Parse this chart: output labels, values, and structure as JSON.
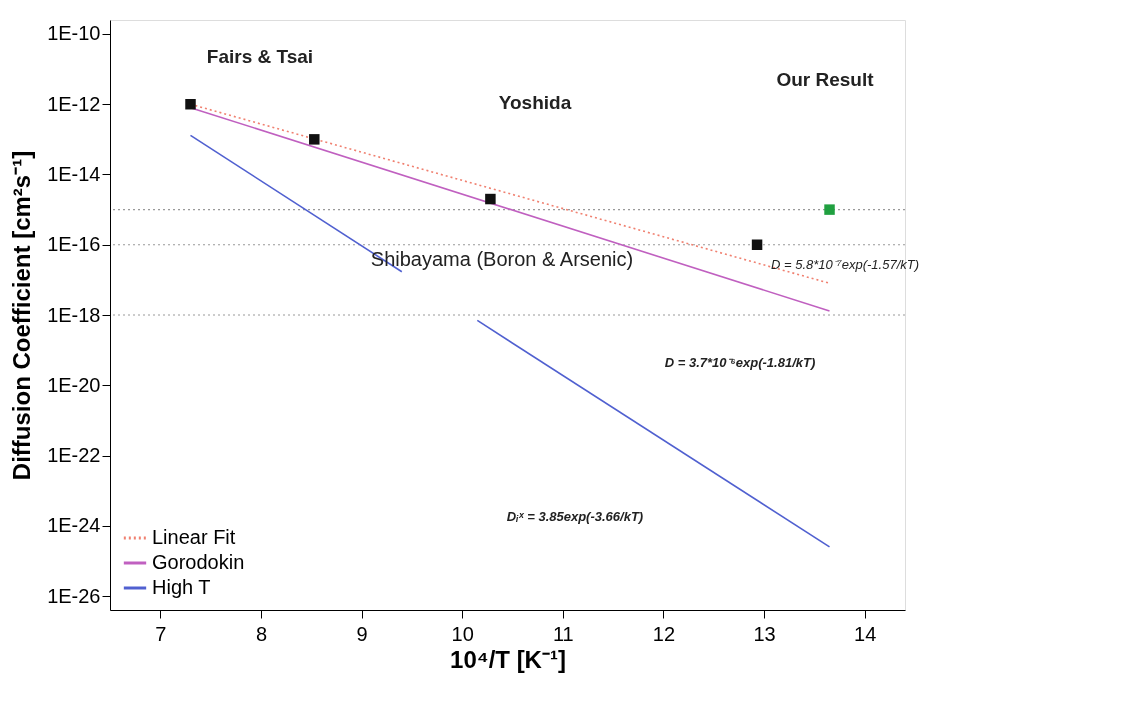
{
  "chart_data": {
    "type": "line",
    "xlabel": "10⁴/T [K⁻¹]",
    "ylabel": "Diffusion Coefficient [cm²s⁻¹]",
    "log": "y",
    "xlim": [
      6.5,
      14.4
    ],
    "ylim": [
      4e-27,
      2.5e-10
    ],
    "xticks": [
      7,
      8,
      9,
      10,
      11,
      12,
      13,
      14
    ],
    "yticks": [
      {
        "value": 1e-10,
        "label": "1E-10"
      },
      {
        "value": 1e-12,
        "label": "1E-12"
      },
      {
        "value": 1e-14,
        "label": "1E-14"
      },
      {
        "value": 1e-16,
        "label": "1E-16"
      },
      {
        "value": 1e-18,
        "label": "1E-18"
      },
      {
        "value": 1e-20,
        "label": "1E-20"
      },
      {
        "value": 1e-22,
        "label": "1E-22"
      },
      {
        "value": 1e-24,
        "label": "1E-24"
      },
      {
        "value": 1e-26,
        "label": "1E-26"
      }
    ],
    "grid": false,
    "legend": "bottom left",
    "series": [
      {
        "name": "Linear Fit",
        "color": "#f08070",
        "line_style": "dotted",
        "x": [
          7.3,
          13.65
        ],
        "values": [
          1e-12,
          8e-18
        ]
      },
      {
        "name": "Gorodokin",
        "color": "#c060c0",
        "line_style": "solid",
        "x": [
          7.3,
          13.65
        ],
        "values": [
          8e-13,
          1.3e-18
        ]
      },
      {
        "name": "High T",
        "color": "#5060d0",
        "line_style": "solid",
        "x": [
          7.3,
          9.4,
          9.8,
          10.15,
          13.65
        ],
        "values": [
          1.3e-13,
          1.7e-17,
          null,
          7e-19,
          2.5e-25
        ]
      },
      {
        "type": "scatter",
        "color": "#111111",
        "marker": "square",
        "x": [
          7.3,
          8.53,
          10.28,
          12.93
        ],
        "values": [
          1e-12,
          1e-13,
          2e-15,
          1e-16
        ]
      },
      {
        "type": "scatter",
        "color": "#20a040",
        "marker": "square",
        "x": [
          13.65
        ],
        "values": [
          1e-15
        ]
      }
    ],
    "ref_lines": [
      {
        "axis": "y",
        "value": 1e-15,
        "color": "#999999",
        "line_style": "dotted"
      },
      {
        "axis": "y",
        "value": 1e-16,
        "color": "#999999",
        "line_style": "dotted"
      },
      {
        "axis": "y",
        "value": 1e-18,
        "color": "#999999",
        "line_style": "dotted"
      }
    ],
    "annotations": [
      "Fairs & Tsai",
      "Yoshida",
      "Our Result",
      "Shibayama (Boron & Arsenic)",
      "D = 5.8*10⁻⁷exp(-1.57/kT)",
      "D = 3.7*10⁻⁶exp(-1.81/kT)",
      "Dᵢˣ = 3.85exp(-3.66/kT)"
    ]
  }
}
